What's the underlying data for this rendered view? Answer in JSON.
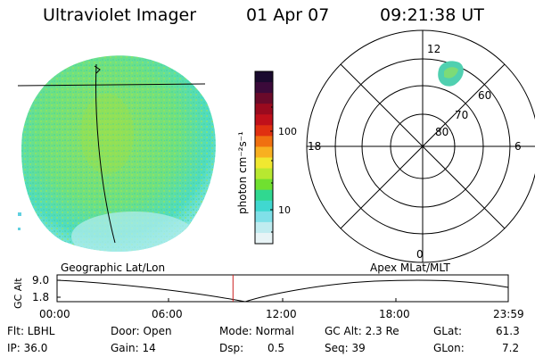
{
  "header": {
    "title": "Ultraviolet Imager",
    "date": "01 Apr 07",
    "time": "09:21:38 UT"
  },
  "colorbar": {
    "unit_label": "photon cm⁻²s⁻¹",
    "ticks": [
      "100",
      "10"
    ],
    "colors": [
      "#1a0a2e",
      "#3b0a3a",
      "#6a0a2a",
      "#9a0a1e",
      "#c0101a",
      "#e03010",
      "#f07010",
      "#f8b020",
      "#f0e830",
      "#b8e830",
      "#70e030",
      "#30d890",
      "#40d8d0",
      "#80e0e8",
      "#c0ecf0",
      "#e8f4f6"
    ]
  },
  "polar_plot": {
    "mlt_labels": {
      "top": "12",
      "bottom": "0",
      "left": "18",
      "right": "6"
    },
    "mlat_labels": [
      "60",
      "70",
      "80"
    ],
    "spot_color": "#50d0b0"
  },
  "timeline": {
    "left_label": "Geographic Lat/Lon",
    "right_label": "Apex MLat/MLT",
    "y_axis_label": "GC Alt",
    "y_ticks": [
      "9.0",
      "1.8"
    ],
    "x_ticks": [
      "00:00",
      "06:00",
      "12:00",
      "18:00",
      "23:59"
    ],
    "cursor_time_fraction": 0.39
  },
  "info": {
    "flt": "Flt: LBHL",
    "ip": "IP: 36.0",
    "door": "Door: Open",
    "gain": "Gain: 14",
    "mode": "Mode: Normal",
    "dsp_label": "Dsp:",
    "dsp_value": "0.5",
    "gc_alt": "GC Alt: 2.3 Re",
    "seq": "Seq: 39",
    "glat_label": "GLat:",
    "glat_value": "61.3",
    "glon_label": "GLon:",
    "glon_value": "7.2"
  }
}
